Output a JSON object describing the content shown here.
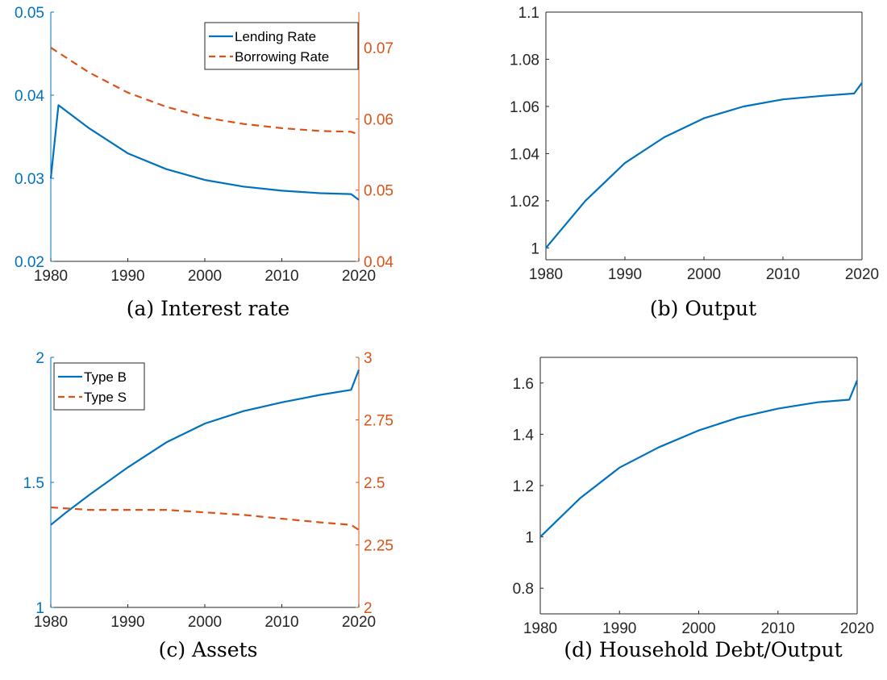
{
  "colors": {
    "blue": "#0072BD",
    "orange": "#D95319",
    "axis": "#262626"
  },
  "chart_data": [
    {
      "type": "line",
      "caption": "(a) Interest rate",
      "xlim": [
        1980,
        2020
      ],
      "xticks": [
        1980,
        1990,
        2000,
        2010,
        2020
      ],
      "ylim": [
        0.02,
        0.05
      ],
      "yticks": [
        "0.02",
        "0.03",
        "0.04",
        "0.05"
      ],
      "ylim_right": [
        0.04,
        0.075
      ],
      "yticks_right": [
        "0.04",
        "0.05",
        "0.06",
        "0.07"
      ],
      "legend": "top-right",
      "series": [
        {
          "name": "Lending Rate",
          "axis": "left",
          "style": "solid",
          "color": "#0072BD",
          "x": [
            1980,
            1981,
            1985,
            1990,
            1995,
            2000,
            2005,
            2010,
            2015,
            2019,
            2020
          ],
          "y": [
            0.03,
            0.0388,
            0.036,
            0.033,
            0.0311,
            0.0298,
            0.029,
            0.0285,
            0.0282,
            0.0281,
            0.0274
          ]
        },
        {
          "name": "Borrowing Rate",
          "axis": "right",
          "style": "dashed",
          "color": "#D95319",
          "x": [
            1980,
            1985,
            1990,
            1995,
            2000,
            2005,
            2010,
            2015,
            2019,
            2020
          ],
          "y": [
            0.07,
            0.0665,
            0.0637,
            0.0617,
            0.0602,
            0.0593,
            0.0587,
            0.0583,
            0.0582,
            0.0578
          ]
        }
      ]
    },
    {
      "type": "line",
      "caption": "(b) Output",
      "xlim": [
        1980,
        2020
      ],
      "xticks": [
        1980,
        1990,
        2000,
        2010,
        2020
      ],
      "ylim": [
        0.995,
        1.1
      ],
      "yticks": [
        "1",
        "1.02",
        "1.04",
        "1.06",
        "1.08",
        "1.1"
      ],
      "series": [
        {
          "axis": "left",
          "style": "solid",
          "color": "#0072BD",
          "x": [
            1980,
            1981,
            1985,
            1990,
            1995,
            2000,
            2005,
            2010,
            2015,
            2019,
            2020
          ],
          "y": [
            1.0,
            1.004,
            1.02,
            1.036,
            1.047,
            1.055,
            1.06,
            1.063,
            1.0645,
            1.0655,
            1.07
          ]
        }
      ]
    },
    {
      "type": "line",
      "caption": "(c) Assets",
      "xlim": [
        1980,
        2020
      ],
      "xticks": [
        1980,
        1990,
        2000,
        2010,
        2020
      ],
      "ylim": [
        1,
        2
      ],
      "yticks": [
        "1",
        "1.5",
        "2"
      ],
      "ylim_right": [
        2,
        3
      ],
      "yticks_right": [
        "2",
        "2.25",
        "2.5",
        "2.75",
        "3"
      ],
      "legend": "top-left",
      "series": [
        {
          "name": "Type B",
          "axis": "left",
          "style": "solid",
          "color": "#0072BD",
          "x": [
            1980,
            1982,
            1985,
            1990,
            1995,
            2000,
            2005,
            2010,
            2015,
            2019,
            2020
          ],
          "y": [
            1.33,
            1.38,
            1.45,
            1.56,
            1.66,
            1.735,
            1.785,
            1.82,
            1.85,
            1.87,
            1.95
          ]
        },
        {
          "name": "Type S",
          "axis": "right",
          "style": "dashed",
          "color": "#D95319",
          "x": [
            1980,
            1985,
            1990,
            1995,
            2000,
            2005,
            2010,
            2015,
            2019,
            2020
          ],
          "y": [
            2.4,
            2.39,
            2.39,
            2.39,
            2.38,
            2.37,
            2.355,
            2.34,
            2.33,
            2.31
          ]
        }
      ]
    },
    {
      "type": "line",
      "caption": "(d) Household Debt/Output",
      "xlim": [
        1980,
        2020
      ],
      "xticks": [
        1980,
        1990,
        2000,
        2010,
        2020
      ],
      "ylim": [
        0.7,
        1.7
      ],
      "yticks": [
        "0.8",
        "1",
        "1.2",
        "1.4",
        "1.6"
      ],
      "series": [
        {
          "axis": "left",
          "style": "solid",
          "color": "#0072BD",
          "x": [
            1980,
            1981,
            1985,
            1990,
            1995,
            2000,
            2005,
            2010,
            2015,
            2019,
            2020
          ],
          "y": [
            1.0,
            1.03,
            1.15,
            1.27,
            1.35,
            1.415,
            1.465,
            1.5,
            1.525,
            1.535,
            1.61
          ]
        }
      ]
    }
  ]
}
